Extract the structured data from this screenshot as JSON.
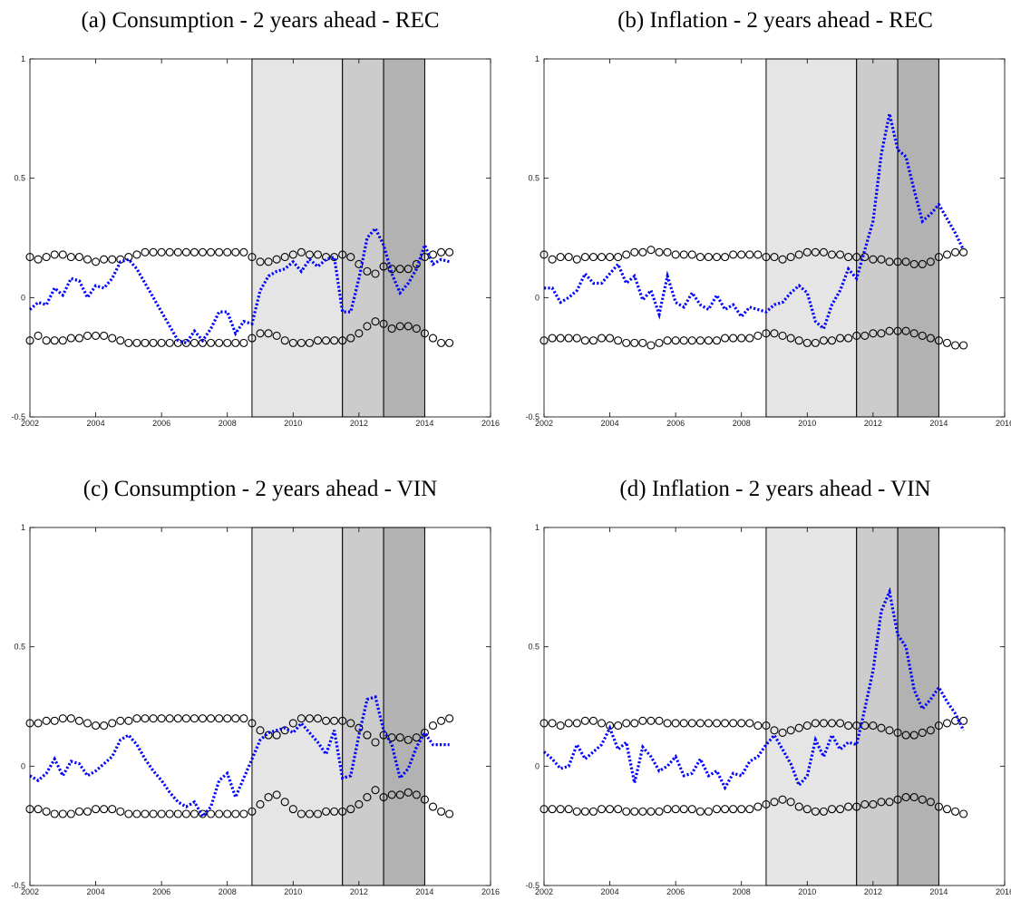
{
  "chart_data": [
    {
      "type": "line",
      "title": "(a) Consumption - 2 years ahead - REC",
      "x": [
        2002,
        2002.25,
        2002.5,
        2002.75,
        2003,
        2003.25,
        2003.5,
        2003.75,
        2004,
        2004.25,
        2004.5,
        2004.75,
        2005,
        2005.25,
        2005.5,
        2005.75,
        2006,
        2006.25,
        2006.5,
        2006.75,
        2007,
        2007.25,
        2007.5,
        2007.75,
        2008,
        2008.25,
        2008.5,
        2008.75,
        2009,
        2009.25,
        2009.5,
        2009.75,
        2010,
        2010.25,
        2010.5,
        2010.75,
        2011,
        2011.25,
        2011.5,
        2011.75,
        2012,
        2012.25,
        2012.5,
        2012.75,
        2013,
        2013.25,
        2013.5,
        2013.75,
        2014,
        2014.25,
        2014.5,
        2014.75
      ],
      "series": [
        {
          "color": "#000000",
          "marker": "o",
          "values": [
            0.17,
            0.16,
            0.17,
            0.18,
            0.18,
            0.17,
            0.17,
            0.16,
            0.15,
            0.16,
            0.16,
            0.16,
            0.17,
            0.18,
            0.19,
            0.19,
            0.19,
            0.19,
            0.19,
            0.19,
            0.19,
            0.19,
            0.19,
            0.19,
            0.19,
            0.19,
            0.19,
            0.17,
            0.15,
            0.15,
            0.16,
            0.17,
            0.18,
            0.19,
            0.18,
            0.18,
            0.17,
            0.17,
            0.18,
            0.17,
            0.14,
            0.11,
            0.1,
            0.13,
            0.12,
            0.12,
            0.12,
            0.14,
            0.17,
            0.18,
            0.19,
            0.19
          ]
        },
        {
          "color": "#000000",
          "marker": "o",
          "values": [
            -0.18,
            -0.16,
            -0.18,
            -0.18,
            -0.18,
            -0.17,
            -0.17,
            -0.16,
            -0.16,
            -0.16,
            -0.17,
            -0.18,
            -0.19,
            -0.19,
            -0.19,
            -0.19,
            -0.19,
            -0.19,
            -0.19,
            -0.19,
            -0.19,
            -0.19,
            -0.19,
            -0.19,
            -0.19,
            -0.19,
            -0.19,
            -0.17,
            -0.15,
            -0.15,
            -0.16,
            -0.18,
            -0.19,
            -0.19,
            -0.19,
            -0.18,
            -0.18,
            -0.18,
            -0.18,
            -0.17,
            -0.15,
            -0.12,
            -0.1,
            -0.11,
            -0.13,
            -0.12,
            -0.12,
            -0.13,
            -0.15,
            -0.17,
            -0.19,
            -0.19
          ]
        },
        {
          "color": "#0000ff",
          "linestyle": "dotted",
          "values": [
            -0.05,
            -0.02,
            -0.03,
            0.04,
            0.01,
            0.08,
            0.07,
            0.0,
            0.05,
            0.04,
            0.08,
            0.15,
            0.16,
            0.12,
            0.06,
            0.0,
            -0.06,
            -0.12,
            -0.18,
            -0.19,
            -0.14,
            -0.18,
            -0.13,
            -0.06,
            -0.06,
            -0.15,
            -0.1,
            -0.11,
            0.03,
            0.09,
            0.11,
            0.12,
            0.15,
            0.11,
            0.16,
            0.13,
            0.16,
            0.17,
            -0.06,
            -0.06,
            0.08,
            0.25,
            0.29,
            0.22,
            0.1,
            0.02,
            0.06,
            0.12,
            0.22,
            0.14,
            0.16,
            0.15
          ]
        }
      ],
      "shaded_regions": [
        {
          "start": 2008.75,
          "end": 2011.5,
          "color": "#e5e5e5"
        },
        {
          "start": 2011.5,
          "end": 2012.75,
          "color": "#cccccc"
        },
        {
          "start": 2012.75,
          "end": 2014,
          "color": "#b2b2b2"
        }
      ],
      "xlim": [
        2002,
        2016
      ],
      "xticks": [
        2002,
        2004,
        2006,
        2008,
        2010,
        2012,
        2014,
        2016
      ],
      "ylim": [
        -0.5,
        1
      ],
      "yticks": [
        -0.5,
        0,
        0.5,
        1
      ]
    },
    {
      "type": "line",
      "title": "(b) Inflation - 2 years ahead - REC",
      "x": [
        2002,
        2002.25,
        2002.5,
        2002.75,
        2003,
        2003.25,
        2003.5,
        2003.75,
        2004,
        2004.25,
        2004.5,
        2004.75,
        2005,
        2005.25,
        2005.5,
        2005.75,
        2006,
        2006.25,
        2006.5,
        2006.75,
        2007,
        2007.25,
        2007.5,
        2007.75,
        2008,
        2008.25,
        2008.5,
        2008.75,
        2009,
        2009.25,
        2009.5,
        2009.75,
        2010,
        2010.25,
        2010.5,
        2010.75,
        2011,
        2011.25,
        2011.5,
        2011.75,
        2012,
        2012.25,
        2012.5,
        2012.75,
        2013,
        2013.25,
        2013.5,
        2013.75,
        2014,
        2014.25,
        2014.5,
        2014.75
      ],
      "series": [
        {
          "color": "#000000",
          "marker": "o",
          "values": [
            0.18,
            0.16,
            0.17,
            0.17,
            0.16,
            0.17,
            0.17,
            0.17,
            0.17,
            0.17,
            0.18,
            0.19,
            0.19,
            0.2,
            0.19,
            0.19,
            0.18,
            0.18,
            0.18,
            0.17,
            0.17,
            0.17,
            0.17,
            0.18,
            0.18,
            0.18,
            0.18,
            0.17,
            0.17,
            0.16,
            0.17,
            0.18,
            0.19,
            0.19,
            0.19,
            0.18,
            0.18,
            0.17,
            0.17,
            0.17,
            0.16,
            0.16,
            0.15,
            0.15,
            0.15,
            0.14,
            0.14,
            0.15,
            0.17,
            0.18,
            0.19,
            0.19
          ]
        },
        {
          "color": "#000000",
          "marker": "o",
          "values": [
            -0.18,
            -0.17,
            -0.17,
            -0.17,
            -0.17,
            -0.18,
            -0.18,
            -0.17,
            -0.17,
            -0.18,
            -0.19,
            -0.19,
            -0.19,
            -0.2,
            -0.19,
            -0.18,
            -0.18,
            -0.18,
            -0.18,
            -0.18,
            -0.18,
            -0.18,
            -0.17,
            -0.17,
            -0.17,
            -0.17,
            -0.16,
            -0.15,
            -0.15,
            -0.16,
            -0.17,
            -0.18,
            -0.19,
            -0.19,
            -0.18,
            -0.18,
            -0.17,
            -0.17,
            -0.16,
            -0.16,
            -0.15,
            -0.15,
            -0.14,
            -0.14,
            -0.14,
            -0.15,
            -0.16,
            -0.17,
            -0.18,
            -0.19,
            -0.2,
            -0.2
          ]
        },
        {
          "color": "#0000ff",
          "linestyle": "dotted",
          "values": [
            0.04,
            0.04,
            -0.02,
            0.0,
            0.03,
            0.1,
            0.06,
            0.06,
            0.1,
            0.14,
            0.06,
            0.09,
            -0.01,
            0.03,
            -0.07,
            0.09,
            -0.02,
            -0.04,
            0.02,
            -0.03,
            -0.05,
            0.01,
            -0.05,
            -0.03,
            -0.08,
            -0.04,
            -0.05,
            -0.06,
            -0.03,
            -0.02,
            0.02,
            0.05,
            0.02,
            -0.1,
            -0.13,
            -0.03,
            0.03,
            0.12,
            0.08,
            0.2,
            0.32,
            0.6,
            0.77,
            0.62,
            0.59,
            0.45,
            0.32,
            0.35,
            0.39,
            0.33,
            0.27,
            0.2
          ]
        }
      ],
      "shaded_regions": [
        {
          "start": 2008.75,
          "end": 2011.5,
          "color": "#e5e5e5"
        },
        {
          "start": 2011.5,
          "end": 2012.75,
          "color": "#cccccc"
        },
        {
          "start": 2012.75,
          "end": 2014,
          "color": "#b2b2b2"
        }
      ],
      "xlim": [
        2002,
        2016
      ],
      "xticks": [
        2002,
        2004,
        2006,
        2008,
        2010,
        2012,
        2014,
        2016
      ],
      "ylim": [
        -0.5,
        1
      ],
      "yticks": [
        -0.5,
        0,
        0.5,
        1
      ]
    },
    {
      "type": "line",
      "title": "(c) Consumption - 2 years ahead - VIN",
      "x": [
        2002,
        2002.25,
        2002.5,
        2002.75,
        2003,
        2003.25,
        2003.5,
        2003.75,
        2004,
        2004.25,
        2004.5,
        2004.75,
        2005,
        2005.25,
        2005.5,
        2005.75,
        2006,
        2006.25,
        2006.5,
        2006.75,
        2007,
        2007.25,
        2007.5,
        2007.75,
        2008,
        2008.25,
        2008.5,
        2008.75,
        2009,
        2009.25,
        2009.5,
        2009.75,
        2010,
        2010.25,
        2010.5,
        2010.75,
        2011,
        2011.25,
        2011.5,
        2011.75,
        2012,
        2012.25,
        2012.5,
        2012.75,
        2013,
        2013.25,
        2013.5,
        2013.75,
        2014,
        2014.25,
        2014.5,
        2014.75
      ],
      "series": [
        {
          "color": "#000000",
          "marker": "o",
          "values": [
            0.18,
            0.18,
            0.19,
            0.19,
            0.2,
            0.2,
            0.19,
            0.18,
            0.17,
            0.17,
            0.18,
            0.19,
            0.19,
            0.2,
            0.2,
            0.2,
            0.2,
            0.2,
            0.2,
            0.2,
            0.2,
            0.2,
            0.2,
            0.2,
            0.2,
            0.2,
            0.2,
            0.18,
            0.15,
            0.13,
            0.13,
            0.15,
            0.18,
            0.2,
            0.2,
            0.2,
            0.19,
            0.19,
            0.19,
            0.18,
            0.16,
            0.13,
            0.1,
            0.13,
            0.12,
            0.12,
            0.11,
            0.12,
            0.14,
            0.17,
            0.19,
            0.2
          ]
        },
        {
          "color": "#000000",
          "marker": "o",
          "values": [
            -0.18,
            -0.18,
            -0.19,
            -0.2,
            -0.2,
            -0.2,
            -0.19,
            -0.19,
            -0.18,
            -0.18,
            -0.18,
            -0.19,
            -0.2,
            -0.2,
            -0.2,
            -0.2,
            -0.2,
            -0.2,
            -0.2,
            -0.2,
            -0.2,
            -0.2,
            -0.2,
            -0.2,
            -0.2,
            -0.2,
            -0.2,
            -0.19,
            -0.16,
            -0.13,
            -0.12,
            -0.15,
            -0.18,
            -0.2,
            -0.2,
            -0.2,
            -0.19,
            -0.19,
            -0.19,
            -0.18,
            -0.16,
            -0.13,
            -0.1,
            -0.13,
            -0.12,
            -0.12,
            -0.11,
            -0.12,
            -0.14,
            -0.17,
            -0.19,
            -0.2
          ]
        },
        {
          "color": "#0000ff",
          "linestyle": "dotted",
          "values": [
            -0.04,
            -0.06,
            -0.03,
            0.03,
            -0.04,
            0.02,
            0.01,
            -0.04,
            -0.02,
            0.01,
            0.04,
            0.11,
            0.13,
            0.09,
            0.03,
            -0.02,
            -0.06,
            -0.11,
            -0.15,
            -0.17,
            -0.15,
            -0.21,
            -0.17,
            -0.06,
            -0.03,
            -0.13,
            -0.05,
            0.03,
            0.11,
            0.14,
            0.15,
            0.16,
            0.14,
            0.18,
            0.14,
            0.1,
            0.05,
            0.15,
            -0.05,
            -0.04,
            0.13,
            0.28,
            0.29,
            0.15,
            0.09,
            -0.05,
            -0.01,
            0.08,
            0.14,
            0.09,
            0.09,
            0.09
          ]
        }
      ],
      "shaded_regions": [
        {
          "start": 2008.75,
          "end": 2011.5,
          "color": "#e5e5e5"
        },
        {
          "start": 2011.5,
          "end": 2012.75,
          "color": "#cccccc"
        },
        {
          "start": 2012.75,
          "end": 2014,
          "color": "#b2b2b2"
        }
      ],
      "xlim": [
        2002,
        2016
      ],
      "xticks": [
        2002,
        2004,
        2006,
        2008,
        2010,
        2012,
        2014,
        2016
      ],
      "ylim": [
        -0.5,
        1
      ],
      "yticks": [
        -0.5,
        0,
        0.5,
        1
      ]
    },
    {
      "type": "line",
      "title": "(d) Inflation - 2 years ahead - VIN",
      "x": [
        2002,
        2002.25,
        2002.5,
        2002.75,
        2003,
        2003.25,
        2003.5,
        2003.75,
        2004,
        2004.25,
        2004.5,
        2004.75,
        2005,
        2005.25,
        2005.5,
        2005.75,
        2006,
        2006.25,
        2006.5,
        2006.75,
        2007,
        2007.25,
        2007.5,
        2007.75,
        2008,
        2008.25,
        2008.5,
        2008.75,
        2009,
        2009.25,
        2009.5,
        2009.75,
        2010,
        2010.25,
        2010.5,
        2010.75,
        2011,
        2011.25,
        2011.5,
        2011.75,
        2012,
        2012.25,
        2012.5,
        2012.75,
        2013,
        2013.25,
        2013.5,
        2013.75,
        2014,
        2014.25,
        2014.5,
        2014.75
      ],
      "series": [
        {
          "color": "#000000",
          "marker": "o",
          "values": [
            0.18,
            0.18,
            0.17,
            0.18,
            0.18,
            0.19,
            0.19,
            0.18,
            0.17,
            0.17,
            0.18,
            0.18,
            0.19,
            0.19,
            0.19,
            0.18,
            0.18,
            0.18,
            0.18,
            0.18,
            0.18,
            0.18,
            0.18,
            0.18,
            0.18,
            0.18,
            0.17,
            0.17,
            0.15,
            0.14,
            0.15,
            0.16,
            0.17,
            0.18,
            0.18,
            0.18,
            0.18,
            0.17,
            0.17,
            0.17,
            0.17,
            0.16,
            0.15,
            0.14,
            0.13,
            0.13,
            0.14,
            0.15,
            0.17,
            0.18,
            0.19,
            0.19
          ]
        },
        {
          "color": "#000000",
          "marker": "o",
          "values": [
            -0.18,
            -0.18,
            -0.18,
            -0.18,
            -0.19,
            -0.19,
            -0.19,
            -0.18,
            -0.18,
            -0.18,
            -0.19,
            -0.19,
            -0.19,
            -0.19,
            -0.19,
            -0.18,
            -0.18,
            -0.18,
            -0.18,
            -0.19,
            -0.19,
            -0.18,
            -0.18,
            -0.18,
            -0.18,
            -0.18,
            -0.17,
            -0.16,
            -0.15,
            -0.14,
            -0.15,
            -0.17,
            -0.18,
            -0.19,
            -0.19,
            -0.18,
            -0.18,
            -0.17,
            -0.17,
            -0.16,
            -0.16,
            -0.15,
            -0.15,
            -0.14,
            -0.13,
            -0.13,
            -0.14,
            -0.15,
            -0.17,
            -0.18,
            -0.19,
            -0.2
          ]
        },
        {
          "color": "#0000ff",
          "linestyle": "dotted",
          "values": [
            0.06,
            0.03,
            -0.01,
            0.0,
            0.09,
            0.03,
            0.06,
            0.09,
            0.16,
            0.07,
            0.1,
            -0.07,
            0.08,
            0.04,
            -0.02,
            0.0,
            0.04,
            -0.04,
            -0.03,
            0.03,
            -0.04,
            -0.02,
            -0.09,
            -0.03,
            -0.04,
            0.02,
            0.04,
            0.09,
            0.13,
            0.07,
            0.01,
            -0.08,
            -0.04,
            0.11,
            0.04,
            0.13,
            0.07,
            0.1,
            0.09,
            0.24,
            0.4,
            0.65,
            0.73,
            0.55,
            0.5,
            0.32,
            0.24,
            0.28,
            0.33,
            0.27,
            0.22,
            0.15
          ]
        }
      ],
      "shaded_regions": [
        {
          "start": 2008.75,
          "end": 2011.5,
          "color": "#e5e5e5"
        },
        {
          "start": 2011.5,
          "end": 2012.75,
          "color": "#cccccc"
        },
        {
          "start": 2012.75,
          "end": 2014,
          "color": "#b2b2b2"
        }
      ],
      "xlim": [
        2002,
        2016
      ],
      "xticks": [
        2002,
        2004,
        2006,
        2008,
        2010,
        2012,
        2014,
        2016
      ],
      "ylim": [
        -0.5,
        1
      ],
      "yticks": [
        -0.5,
        0,
        0.5,
        1
      ]
    }
  ]
}
